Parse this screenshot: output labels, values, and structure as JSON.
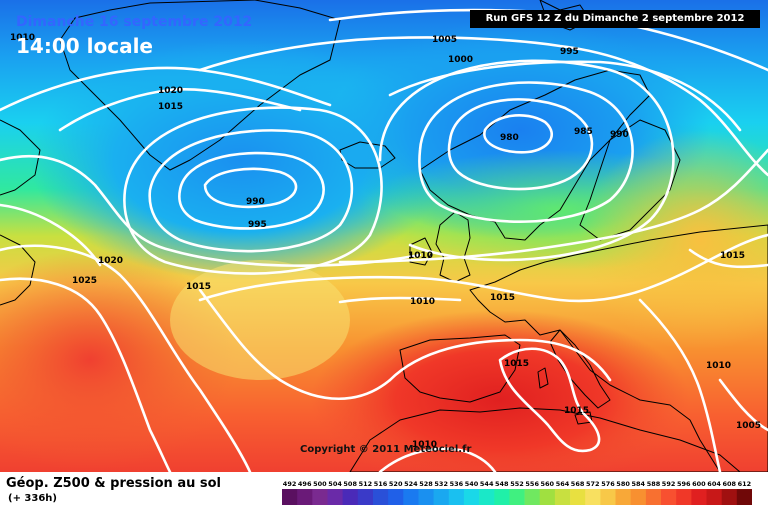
{
  "header": {
    "date": "Dimanche 16 septembre 2012",
    "local_time": "14:00 locale",
    "run": "Run GFS 12 Z du Dimanche 2 septembre 2012"
  },
  "copyright": "Copyright © 2011 Meteociel.fr",
  "legend": {
    "title": "Géop. Z500 & pression au sol",
    "subtitle": "(+ 336h)",
    "scale_values": [
      "492",
      "496",
      "500",
      "504",
      "508",
      "512",
      "516",
      "520",
      "524",
      "528",
      "532",
      "536",
      "540",
      "544",
      "548",
      "552",
      "556",
      "560",
      "564",
      "568",
      "572",
      "576",
      "580",
      "584",
      "588",
      "592",
      "596",
      "600",
      "604",
      "608",
      "612"
    ],
    "scale_colors": [
      "#5a1060",
      "#6a1a78",
      "#7a2a90",
      "#6a2aa8",
      "#4a2ab8",
      "#3a3ac8",
      "#2a50d8",
      "#2060e8",
      "#1a7af0",
      "#1a90f0",
      "#1aa8f0",
      "#1ac0f0",
      "#1ad8e8",
      "#1ae8c8",
      "#20f0a8",
      "#40f080",
      "#70e860",
      "#a0e040",
      "#c8e040",
      "#e8e040",
      "#f8e060",
      "#f8c848",
      "#f8a838",
      "#f89030",
      "#f87030",
      "#f85030",
      "#f03828",
      "#e02020",
      "#c81818",
      "#a01010",
      "#700808"
    ]
  },
  "isobar_labels": [
    {
      "text": "1010"
    },
    {
      "text": "1005"
    },
    {
      "text": "995"
    },
    {
      "text": "1000"
    },
    {
      "text": "1020"
    },
    {
      "text": "1015"
    },
    {
      "text": "980"
    },
    {
      "text": "985"
    },
    {
      "text": "990"
    },
    {
      "text": "990"
    },
    {
      "text": "995"
    },
    {
      "text": "1020"
    },
    {
      "text": "1025"
    },
    {
      "text": "1015"
    },
    {
      "text": "1010"
    },
    {
      "text": "1010"
    },
    {
      "text": "1015"
    },
    {
      "text": "1015"
    },
    {
      "text": "1015"
    },
    {
      "text": "1015"
    },
    {
      "text": "1010"
    },
    {
      "text": "1005"
    },
    {
      "text": "1010"
    }
  ],
  "colors": {
    "isobar": "#ffffff",
    "coast": "#000000"
  }
}
